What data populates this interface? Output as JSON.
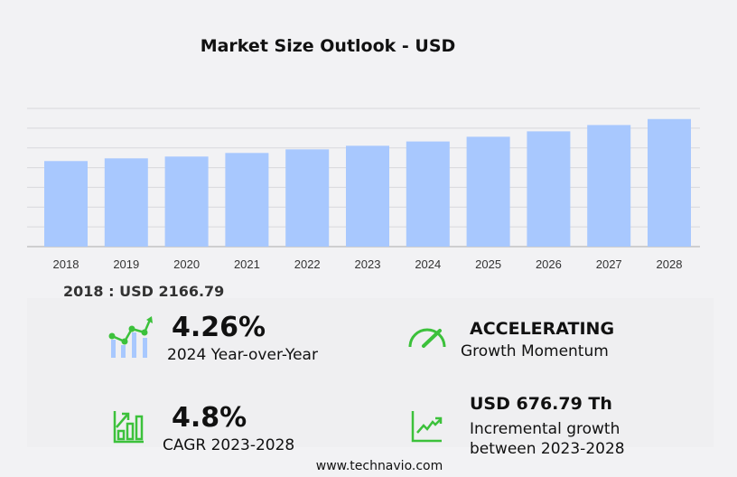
{
  "chart_data": {
    "type": "bar",
    "title": "Market Size Outlook  - USD",
    "categories": [
      "2018",
      "2019",
      "2020",
      "2021",
      "2022",
      "2023",
      "2024",
      "2025",
      "2026",
      "2027",
      "2028"
    ],
    "values": [
      2166.79,
      2235,
      2281,
      2372,
      2463,
      2554,
      2663,
      2782,
      2919,
      3079,
      3231
    ],
    "ylim": [
      0,
      3500
    ],
    "grid": true,
    "bar_color": "#a8c8fe"
  },
  "first_value": "2018 : USD  2166.79",
  "stats": {
    "yoy_value": "4.26%",
    "yoy_label": "2024 Year-over-Year",
    "momentum_value": "ACCELERATING",
    "momentum_label": "Growth Momentum",
    "cagr_value": "4.8%",
    "cagr_label": "CAGR 2023-2028",
    "incr_value": "USD  676.79 Th",
    "incr_label1": "Incremental growth",
    "incr_label2": "between 2023-2028"
  },
  "footer": "www.technavio.com",
  "accent": "#3cc13b"
}
